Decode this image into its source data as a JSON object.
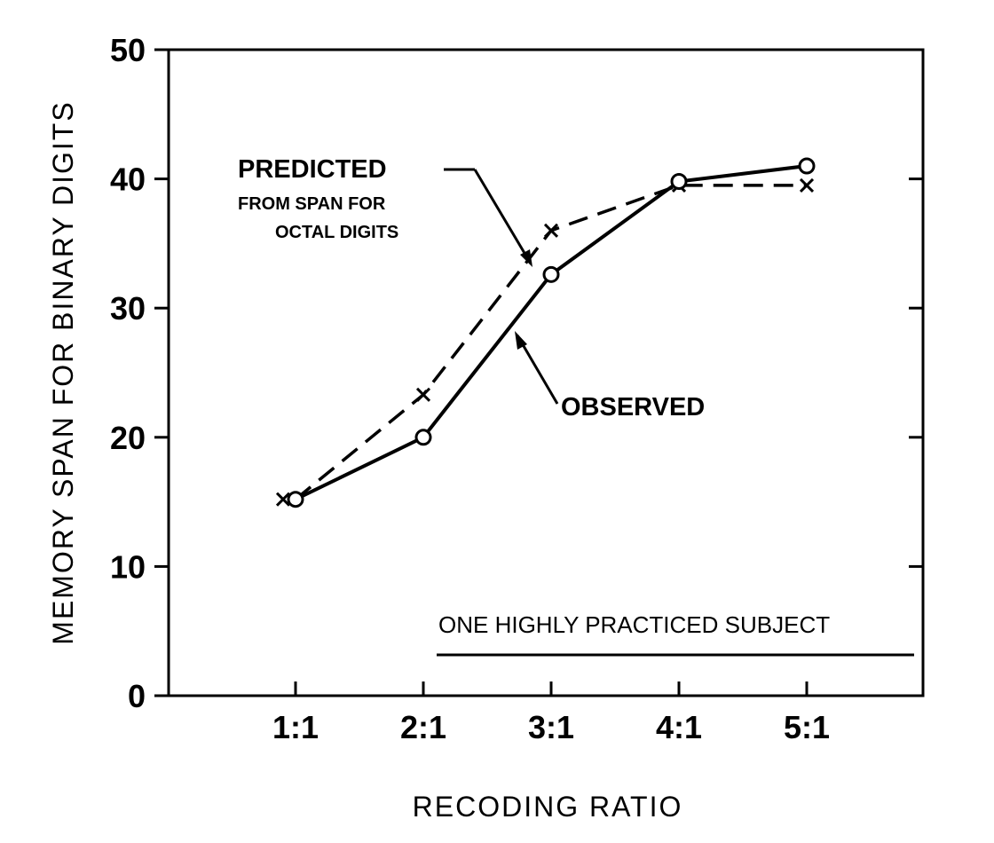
{
  "chart_data": {
    "type": "line",
    "categories": [
      "1:1",
      "2:1",
      "3:1",
      "4:1",
      "5:1"
    ],
    "series": [
      {
        "name": "PREDICTED",
        "style": "dashed",
        "marker": "x",
        "values": [
          15.2,
          23.3,
          36.0,
          39.5,
          39.5
        ]
      },
      {
        "name": "OBSERVED",
        "style": "solid",
        "marker": "o",
        "values": [
          15.2,
          20.0,
          32.6,
          39.8,
          41.0
        ]
      }
    ],
    "xlabel": "RECODING RATIO",
    "ylabel": "MEMORY SPAN FOR BINARY DIGITS",
    "ylim": [
      0,
      50
    ],
    "yticks": [
      0,
      10,
      20,
      30,
      40,
      50
    ],
    "grid": false,
    "annotations": {
      "predicted_title": "PREDICTED",
      "predicted_line1": "FROM SPAN FOR",
      "predicted_line2": "OCTAL DIGITS",
      "observed": "OBSERVED",
      "note": "ONE HIGHLY PRACTICED SUBJECT"
    }
  }
}
